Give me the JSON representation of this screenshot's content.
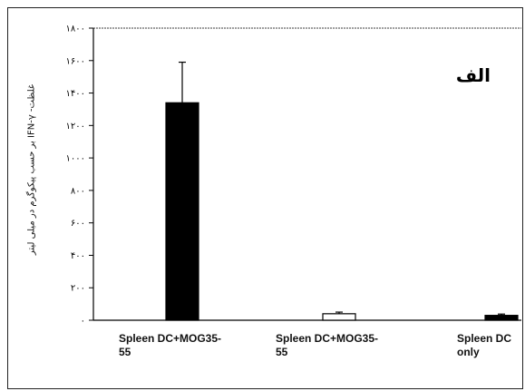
{
  "chart_data": {
    "type": "bar",
    "title": "",
    "panel_label": "الف",
    "ylabel": "غلظت- IFN-γ بر حسب پیکوگرم در میلی لیتر",
    "xlabel": "",
    "categories": [
      "Spleen DC+MOG35-\n55",
      "Spleen DC+MOG35-\n55",
      "Spleen DC\nonly"
    ],
    "values": [
      1340,
      40,
      30
    ],
    "errors": [
      250,
      10,
      8
    ],
    "bar_fills": [
      "#000000",
      "#ffffff",
      "#000000"
    ],
    "ylim": [
      0,
      1800
    ],
    "yticks": [
      0,
      200,
      400,
      600,
      800,
      1000,
      1200,
      1400,
      1600,
      1800
    ],
    "ytick_labels": [
      "۰",
      "۲۰۰",
      "۴۰۰",
      "۶۰۰",
      "۸۰۰",
      "۱۰۰۰",
      "۱۲۰۰",
      "۱۴۰۰",
      "۱۶۰۰",
      "۱۸۰۰"
    ],
    "grid": false,
    "legend": "none"
  }
}
